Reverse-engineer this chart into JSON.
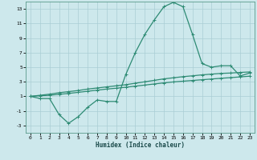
{
  "xlabel": "Humidex (Indice chaleur)",
  "x_values": [
    0,
    1,
    2,
    3,
    4,
    5,
    6,
    7,
    8,
    9,
    10,
    11,
    12,
    13,
    14,
    15,
    16,
    17,
    18,
    19,
    20,
    21,
    22,
    23
  ],
  "line1_y": [
    1.0,
    0.7,
    0.7,
    -1.5,
    -2.7,
    -1.8,
    -0.5,
    0.5,
    0.3,
    0.3,
    4.0,
    7.0,
    9.5,
    11.5,
    13.3,
    13.9,
    13.3,
    9.5,
    5.5,
    5.0,
    5.2,
    5.2,
    3.8,
    4.2
  ],
  "line2_y": [
    1.0,
    1.15,
    1.3,
    1.5,
    1.65,
    1.8,
    2.0,
    2.15,
    2.3,
    2.45,
    2.6,
    2.8,
    3.0,
    3.2,
    3.4,
    3.55,
    3.7,
    3.82,
    3.95,
    4.05,
    4.15,
    4.2,
    4.28,
    4.35
  ],
  "line3_y": [
    1.0,
    1.08,
    1.15,
    1.28,
    1.4,
    1.55,
    1.7,
    1.85,
    2.0,
    2.12,
    2.25,
    2.4,
    2.55,
    2.7,
    2.85,
    2.98,
    3.08,
    3.18,
    3.28,
    3.38,
    3.48,
    3.57,
    3.67,
    3.77
  ],
  "line_color": "#2e8b74",
  "bg_color": "#cde8ec",
  "grid_color": "#aacdd4",
  "ylim": [
    -4,
    14
  ],
  "xlim": [
    -0.5,
    23.5
  ],
  "yticks": [
    -3,
    -1,
    1,
    3,
    5,
    7,
    9,
    11,
    13
  ],
  "xticks": [
    0,
    1,
    2,
    3,
    4,
    5,
    6,
    7,
    8,
    9,
    10,
    11,
    12,
    13,
    14,
    15,
    16,
    17,
    18,
    19,
    20,
    21,
    22,
    23
  ],
  "marker": "+",
  "marker_size": 3,
  "line_width": 0.9
}
